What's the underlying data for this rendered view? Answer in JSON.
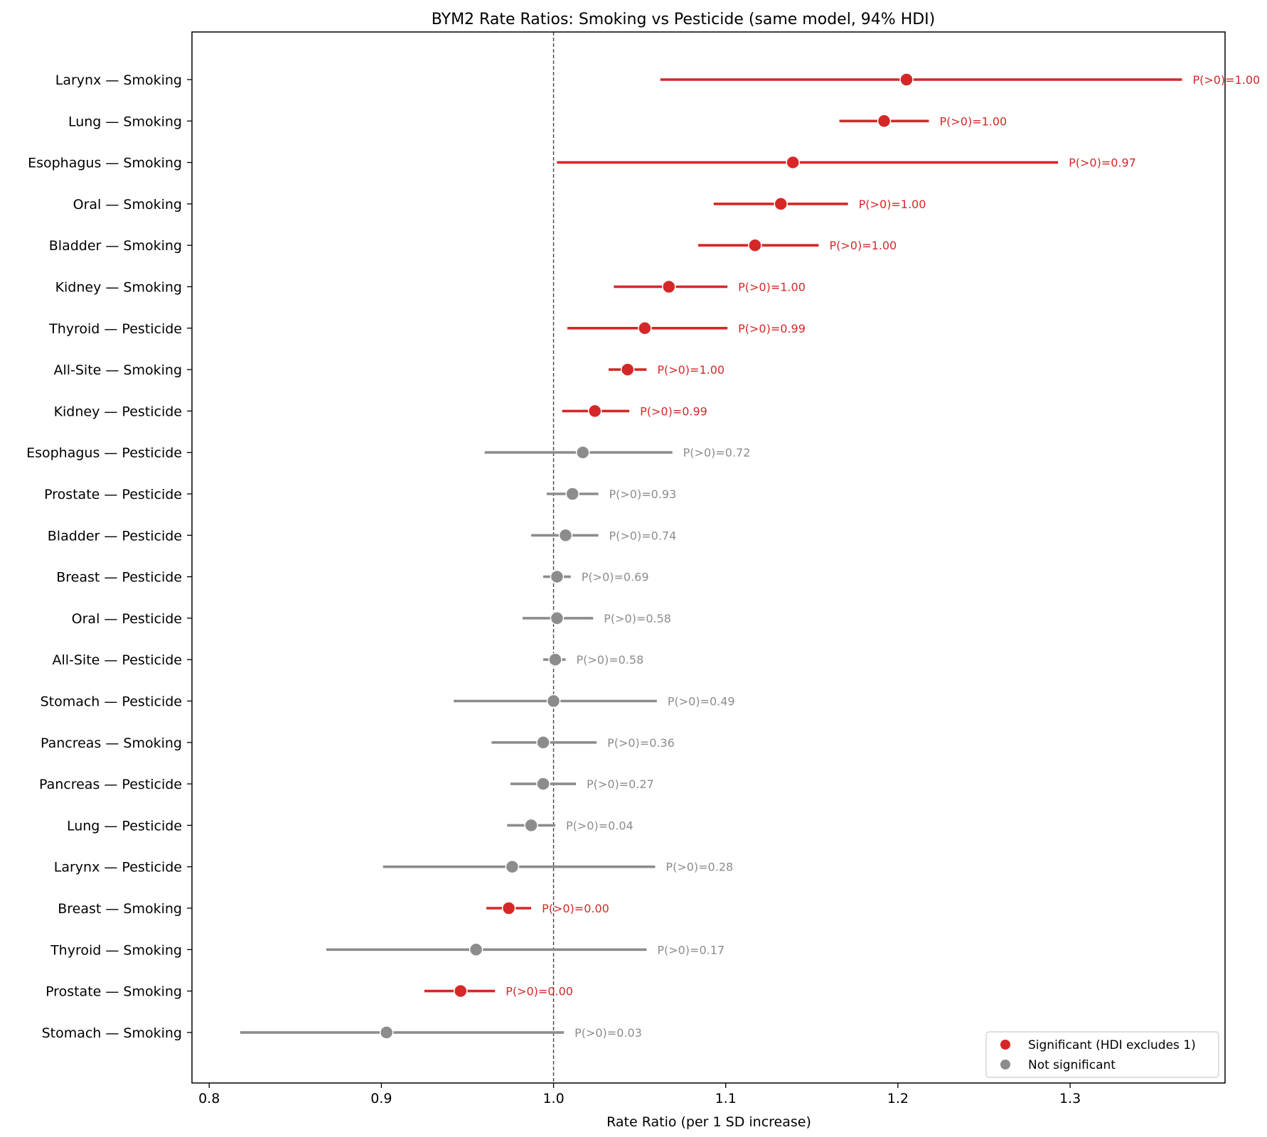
{
  "chart_data": {
    "type": "forest",
    "title": "BYM2 Rate Ratios: Smoking vs Pesticide (same model, 94% HDI)",
    "xlabel": "Rate Ratio (per 1 SD increase)",
    "ylabel": "",
    "xlim": [
      0.79,
      1.39
    ],
    "xticks": [
      "0.8",
      "0.9",
      "1.0",
      "1.1",
      "1.2",
      "1.3"
    ],
    "xtick_values": [
      0.8,
      0.9,
      1.0,
      1.1,
      1.2,
      1.3
    ],
    "reference_line": 1.0,
    "grid": false,
    "colors": {
      "significant": "#d62728",
      "not_significant": "#8c8c8c",
      "axis": "#000000",
      "reference": "#444444"
    },
    "legend": {
      "position": "bottom-right",
      "entries": [
        {
          "label": "Significant (HDI excludes 1)",
          "status": "significant"
        },
        {
          "label": "Not significant",
          "status": "not_significant"
        }
      ]
    },
    "rows": [
      {
        "label": "Larynx — Smoking",
        "mean": 1.205,
        "low": 1.062,
        "high": 1.365,
        "ptext": "P(>0)=1.00",
        "significant": true
      },
      {
        "label": "Lung — Smoking",
        "mean": 1.192,
        "low": 1.166,
        "high": 1.218,
        "ptext": "P(>0)=1.00",
        "significant": true
      },
      {
        "label": "Esophagus — Smoking",
        "mean": 1.139,
        "low": 1.002,
        "high": 1.293,
        "ptext": "P(>0)=0.97",
        "significant": true
      },
      {
        "label": "Oral — Smoking",
        "mean": 1.132,
        "low": 1.093,
        "high": 1.171,
        "ptext": "P(>0)=1.00",
        "significant": true
      },
      {
        "label": "Bladder — Smoking",
        "mean": 1.117,
        "low": 1.084,
        "high": 1.154,
        "ptext": "P(>0)=1.00",
        "significant": true
      },
      {
        "label": "Kidney — Smoking",
        "mean": 1.067,
        "low": 1.035,
        "high": 1.101,
        "ptext": "P(>0)=1.00",
        "significant": true
      },
      {
        "label": "Thyroid — Pesticide",
        "mean": 1.053,
        "low": 1.008,
        "high": 1.101,
        "ptext": "P(>0)=0.99",
        "significant": true
      },
      {
        "label": "All-Site — Smoking",
        "mean": 1.043,
        "low": 1.032,
        "high": 1.054,
        "ptext": "P(>0)=1.00",
        "significant": true
      },
      {
        "label": "Kidney — Pesticide",
        "mean": 1.024,
        "low": 1.005,
        "high": 1.044,
        "ptext": "P(>0)=0.99",
        "significant": true
      },
      {
        "label": "Esophagus — Pesticide",
        "mean": 1.017,
        "low": 0.96,
        "high": 1.069,
        "ptext": "P(>0)=0.72",
        "significant": false
      },
      {
        "label": "Prostate — Pesticide",
        "mean": 1.011,
        "low": 0.996,
        "high": 1.026,
        "ptext": "P(>0)=0.93",
        "significant": false
      },
      {
        "label": "Bladder — Pesticide",
        "mean": 1.007,
        "low": 0.987,
        "high": 1.026,
        "ptext": "P(>0)=0.74",
        "significant": false
      },
      {
        "label": "Breast — Pesticide",
        "mean": 1.002,
        "low": 0.994,
        "high": 1.01,
        "ptext": "P(>0)=0.69",
        "significant": false
      },
      {
        "label": "Oral — Pesticide",
        "mean": 1.002,
        "low": 0.982,
        "high": 1.023,
        "ptext": "P(>0)=0.58",
        "significant": false
      },
      {
        "label": "All-Site — Pesticide",
        "mean": 1.001,
        "low": 0.994,
        "high": 1.007,
        "ptext": "P(>0)=0.58",
        "significant": false
      },
      {
        "label": "Stomach — Pesticide",
        "mean": 1.0,
        "low": 0.942,
        "high": 1.06,
        "ptext": "P(>0)=0.49",
        "significant": false
      },
      {
        "label": "Pancreas — Smoking",
        "mean": 0.994,
        "low": 0.964,
        "high": 1.025,
        "ptext": "P(>0)=0.36",
        "significant": false
      },
      {
        "label": "Pancreas — Pesticide",
        "mean": 0.994,
        "low": 0.975,
        "high": 1.013,
        "ptext": "P(>0)=0.27",
        "significant": false
      },
      {
        "label": "Lung — Pesticide",
        "mean": 0.987,
        "low": 0.973,
        "high": 1.001,
        "ptext": "P(>0)=0.04",
        "significant": false
      },
      {
        "label": "Larynx — Pesticide",
        "mean": 0.976,
        "low": 0.901,
        "high": 1.059,
        "ptext": "P(>0)=0.28",
        "significant": false
      },
      {
        "label": "Breast — Smoking",
        "mean": 0.974,
        "low": 0.961,
        "high": 0.987,
        "ptext": "P(>0)=0.00",
        "significant": true
      },
      {
        "label": "Thyroid — Smoking",
        "mean": 0.955,
        "low": 0.868,
        "high": 1.054,
        "ptext": "P(>0)=0.17",
        "significant": false
      },
      {
        "label": "Prostate — Smoking",
        "mean": 0.946,
        "low": 0.925,
        "high": 0.966,
        "ptext": "P(>0)=0.00",
        "significant": true
      },
      {
        "label": "Stomach — Smoking",
        "mean": 0.903,
        "low": 0.818,
        "high": 1.006,
        "ptext": "P(>0)=0.03",
        "significant": false
      }
    ]
  }
}
